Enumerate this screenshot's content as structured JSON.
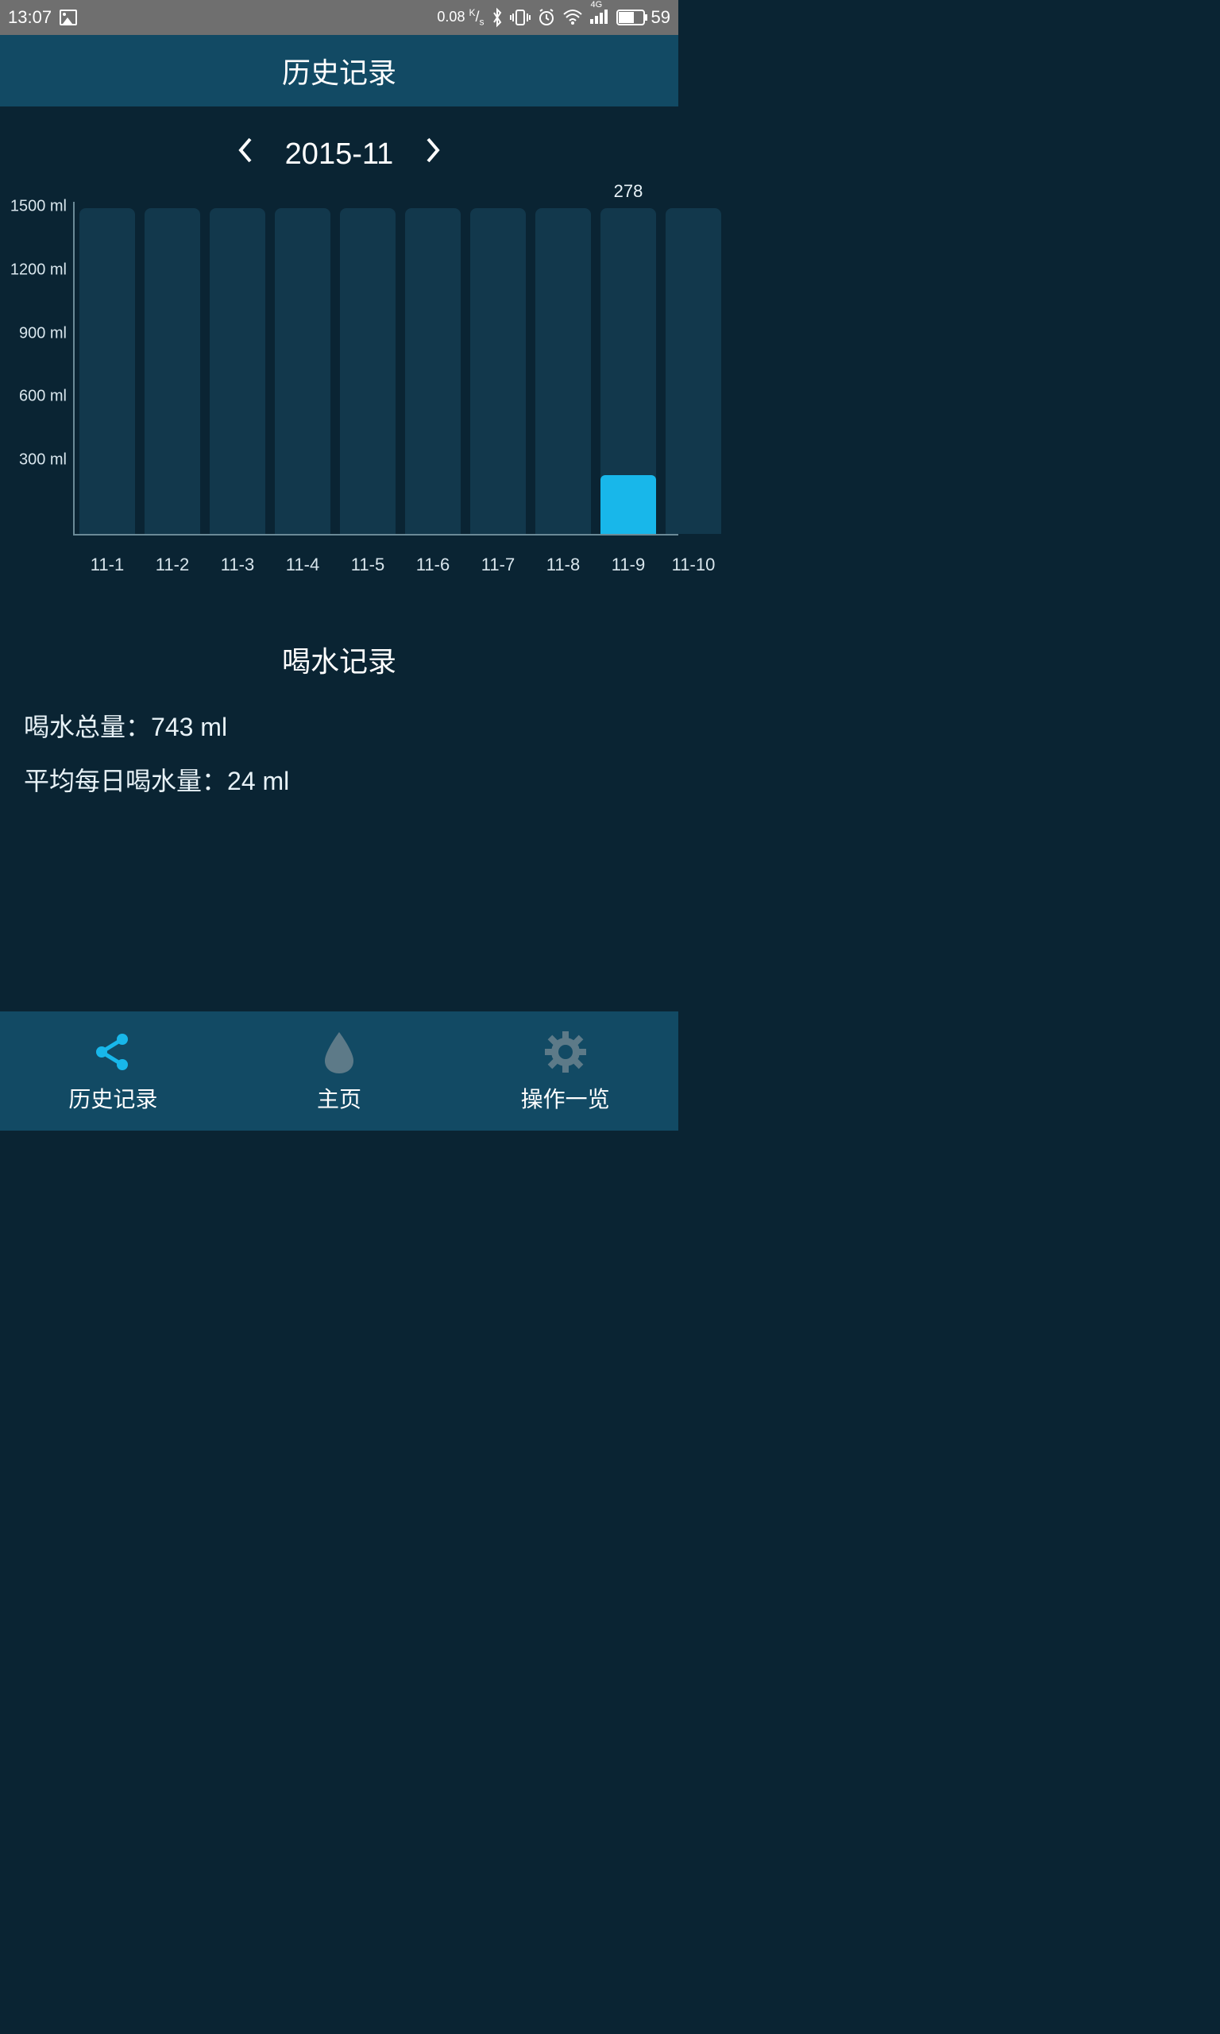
{
  "status": {
    "time": "13:07",
    "net_speed": "0.08",
    "net_unit": "K/s",
    "signal_label": "4G",
    "battery_pct": "59"
  },
  "title": "历史记录",
  "month_selector": {
    "label": "2015-11"
  },
  "chart": {
    "type": "bar",
    "ylim_max": 1500,
    "y_ticks": [
      300,
      600,
      900,
      1200,
      1500
    ],
    "y_tick_labels": [
      "300 ml",
      "600 ml",
      "900 ml",
      "1200 ml",
      "1500 ml"
    ],
    "bar_bg_color": "#12384c",
    "bar_fill_color": "#18b7ea",
    "axis_color": "#6b8a97",
    "bg_color": "#0a2433",
    "bar_bg_height_pct": 98,
    "bars": [
      {
        "label": "11-1",
        "value": 0,
        "show_value": false
      },
      {
        "label": "11-2",
        "value": 0,
        "show_value": false
      },
      {
        "label": "11-3",
        "value": 0,
        "show_value": false
      },
      {
        "label": "11-4",
        "value": 0,
        "show_value": false
      },
      {
        "label": "11-5",
        "value": 0,
        "show_value": false
      },
      {
        "label": "11-6",
        "value": 0,
        "show_value": false
      },
      {
        "label": "11-7",
        "value": 0,
        "show_value": false
      },
      {
        "label": "11-8",
        "value": 0,
        "show_value": false
      },
      {
        "label": "11-9",
        "value": 278,
        "show_value": true
      },
      {
        "label": "11-10",
        "value": 0,
        "show_value": false
      }
    ]
  },
  "stats": {
    "title": "喝水记录",
    "total_label": "喝水总量：",
    "total_value": "743 ml",
    "avg_label": "平均每日喝水量：",
    "avg_value": "24 ml"
  },
  "nav": {
    "history": "历史记录",
    "home": "主页",
    "actions": "操作一览",
    "active_color": "#18b7ea",
    "inactive_color": "#5d7a88"
  }
}
